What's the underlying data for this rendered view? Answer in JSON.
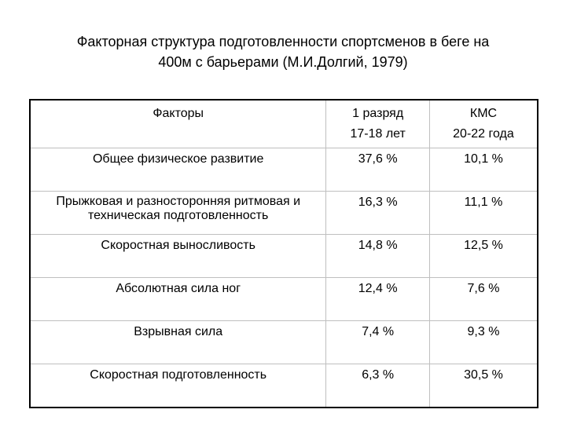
{
  "title": {
    "line1": "Факторная структура подготовленности спортсменов в беге на",
    "line2": "400м с барьерами (М.И.Долгий, 1979)"
  },
  "table": {
    "headers": {
      "factors": "Факторы",
      "col1_line1": "1 разряд",
      "col1_line2": "17-18 лет",
      "col2_line1": "КМС",
      "col2_line2": "20-22 года"
    },
    "rows": [
      {
        "factor": "Общее физическое развитие",
        "col1": "37,6 %",
        "col2": "10,1 %"
      },
      {
        "factor": "Прыжковая и разносторонняя ритмовая и техническая подготовленность",
        "col1": "16,3 %",
        "col2": "11,1 %"
      },
      {
        "factor": "Скоростная выносливость",
        "col1": "14,8 %",
        "col2": "12,5 %"
      },
      {
        "factor": "Абсолютная сила ног",
        "col1": "12,4 %",
        "col2": "7,6 %"
      },
      {
        "factor": "Взрывная сила",
        "col1": "7,4 %",
        "col2": "9,3 %"
      },
      {
        "factor": "Скоростная подготовленность",
        "col1": "6,3 %",
        "col2": "30,5 %"
      }
    ]
  }
}
